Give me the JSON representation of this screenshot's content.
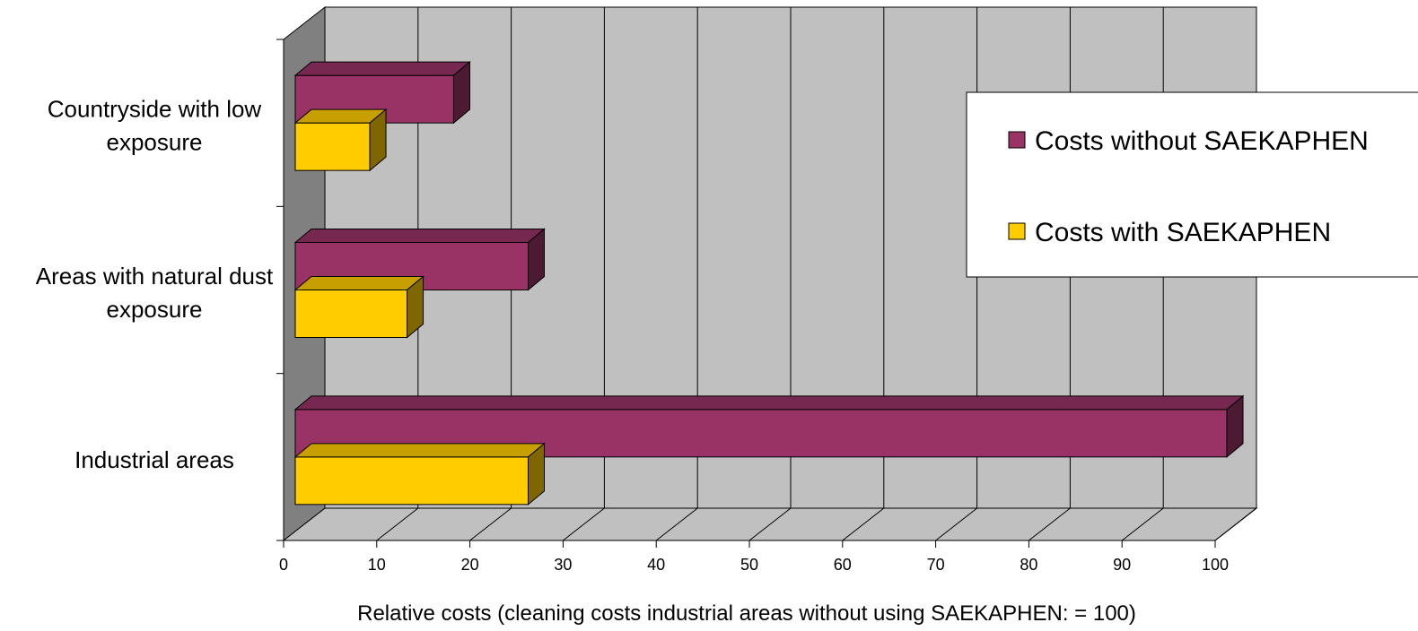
{
  "chart_data": {
    "type": "bar",
    "orientation": "horizontal",
    "three_d": true,
    "categories": [
      "Countryside with low exposure",
      "Areas with natural dust exposure",
      "Industrial areas"
    ],
    "category_lines": [
      [
        "Countryside with low",
        "exposure"
      ],
      [
        "Areas with natural dust",
        "exposure"
      ],
      [
        "Industrial areas"
      ]
    ],
    "series": [
      {
        "name": "Costs without SAEKAPHEN",
        "values": [
          17,
          25,
          100
        ],
        "color": "#993366"
      },
      {
        "name": "Costs with SAEKAPHEN",
        "values": [
          8,
          12,
          25
        ],
        "color": "#FFCC00"
      }
    ],
    "xlabel": "Relative costs (cleaning costs industrial areas without using SAEKAPHEN: = 100)",
    "xlim": [
      0,
      100
    ],
    "xticks": [
      "0",
      "10",
      "20",
      "30",
      "40",
      "50",
      "60",
      "70",
      "80",
      "90",
      "100"
    ],
    "grid": true,
    "legend_position": "right",
    "wall_color": "#C0C0C0",
    "side_wall_color": "#808080"
  }
}
